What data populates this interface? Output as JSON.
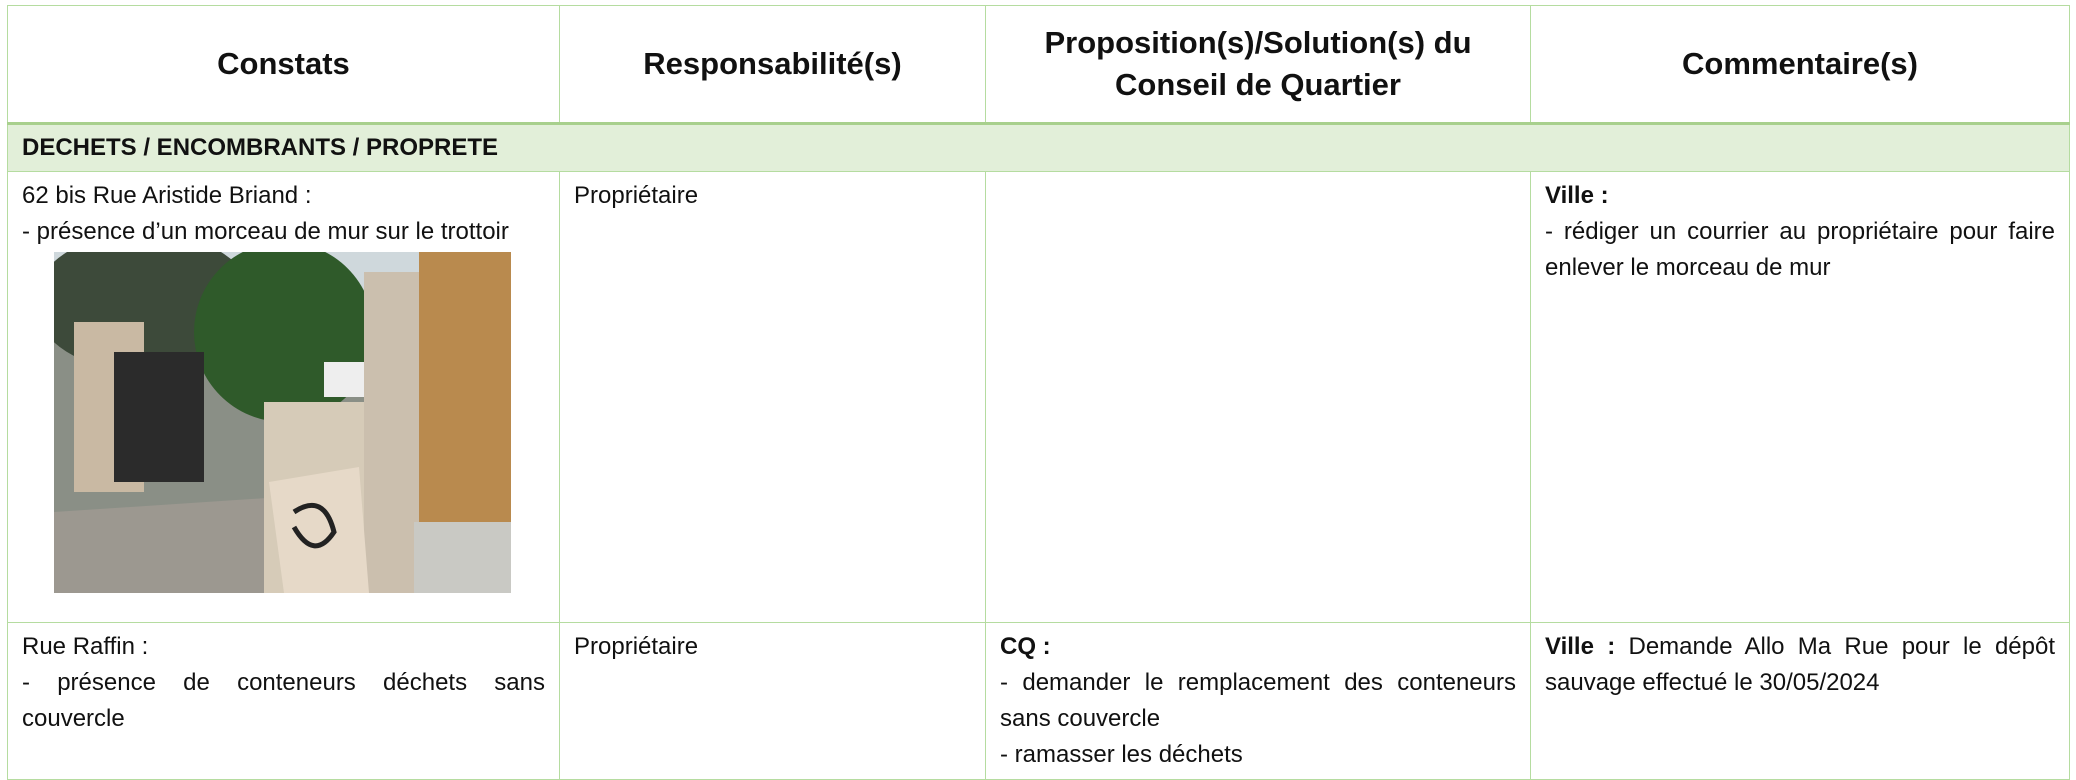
{
  "table": {
    "header": [
      "Constats",
      "Responsabilité(s)",
      "Proposition(s)/Solution(s) du Conseil de Quartier",
      "Commentaire(s)"
    ],
    "section": "DECHETS / ENCOMBRANTS / PROPRETE",
    "rows": [
      {
        "constats": {
          "place": "62 bis Rue Aristide Briand :",
          "text": "- présence d’un morceau de mur sur le trottoir"
        },
        "responsabilite": "Propriétaire",
        "comment": {
          "label": "Ville :",
          "lines": [
            "- rédiger un courrier au propriétaire pour faire enlever le morceau de mur"
          ]
        }
      },
      {
        "constats": {
          "place": "Rue Raffin :",
          "text": "- présence de conteneurs déchets sans couvercle"
        },
        "responsabilite": "Propriétaire",
        "proposition": {
          "label": "CQ :",
          "lines": [
            "- demander le remplacement des conteneurs sans couvercle",
            "- ramasser les déchets"
          ]
        },
        "comment": {
          "label": "Ville :",
          "text": "Demande Allo Ma Rue pour le dépôt sauvage effectué le 30/05/2024"
        }
      }
    ]
  }
}
